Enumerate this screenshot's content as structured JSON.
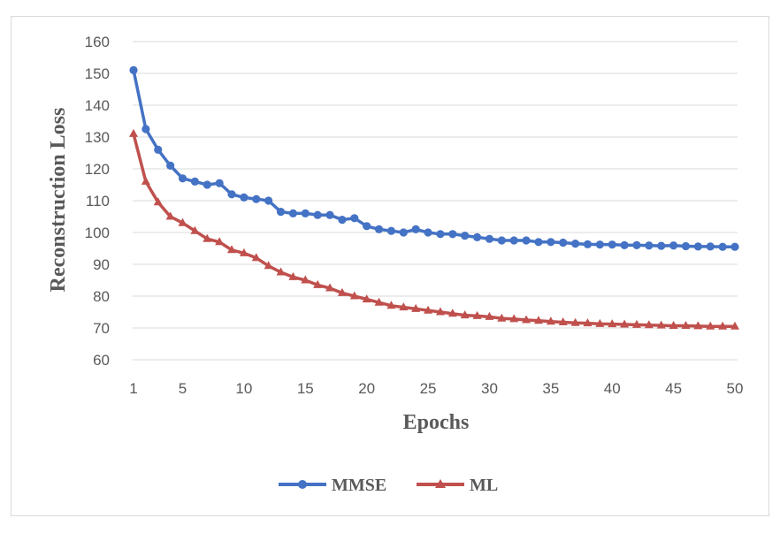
{
  "chart_data": {
    "type": "line",
    "title": "",
    "xlabel": "Epochs",
    "ylabel": "Reconstruction Loss",
    "xlim": [
      1,
      50
    ],
    "ylim": [
      60,
      160
    ],
    "yticks": [
      "60",
      "70",
      "80",
      "90",
      "100",
      "110",
      "120",
      "130",
      "140",
      "150",
      "160"
    ],
    "xticks": [
      "1",
      "5",
      "10",
      "15",
      "20",
      "25",
      "30",
      "35",
      "40",
      "45",
      "50"
    ],
    "grid": "horizontal",
    "legend": "bottom-center",
    "x": [
      1,
      2,
      3,
      4,
      5,
      6,
      7,
      8,
      9,
      10,
      11,
      12,
      13,
      14,
      15,
      16,
      17,
      18,
      19,
      20,
      21,
      22,
      23,
      24,
      25,
      26,
      27,
      28,
      29,
      30,
      31,
      32,
      33,
      34,
      35,
      36,
      37,
      38,
      39,
      40,
      41,
      42,
      43,
      44,
      45,
      46,
      47,
      48,
      49,
      50
    ],
    "series": [
      {
        "name": "MMSE",
        "color": "#4472c4",
        "marker": "circle",
        "values": [
          151,
          132.5,
          126,
          121,
          117,
          116,
          115,
          115.5,
          112,
          111,
          110.5,
          110,
          106.5,
          106,
          106,
          105.5,
          105.5,
          104,
          104.5,
          102,
          101,
          100.5,
          100,
          101,
          100,
          99.5,
          99.5,
          99,
          98.5,
          98,
          97.5,
          97.5,
          97.5,
          97,
          97,
          96.8,
          96.5,
          96.3,
          96.2,
          96.2,
          96,
          96,
          95.9,
          95.8,
          95.9,
          95.7,
          95.6,
          95.6,
          95.5,
          95.5
        ]
      },
      {
        "name": "ML",
        "color": "#c0504d",
        "marker": "triangle",
        "values": [
          131,
          116,
          109.5,
          105,
          103,
          100.5,
          98,
          97,
          94.5,
          93.5,
          92,
          89.5,
          87.5,
          86,
          85,
          83.5,
          82.5,
          81,
          80,
          79,
          78,
          77,
          76.5,
          76,
          75.5,
          75,
          74.5,
          74,
          73.8,
          73.5,
          73,
          72.8,
          72.5,
          72.3,
          72,
          71.8,
          71.6,
          71.5,
          71.3,
          71.2,
          71.1,
          71,
          70.9,
          70.8,
          70.7,
          70.7,
          70.6,
          70.5,
          70.5,
          70.5
        ]
      }
    ]
  }
}
